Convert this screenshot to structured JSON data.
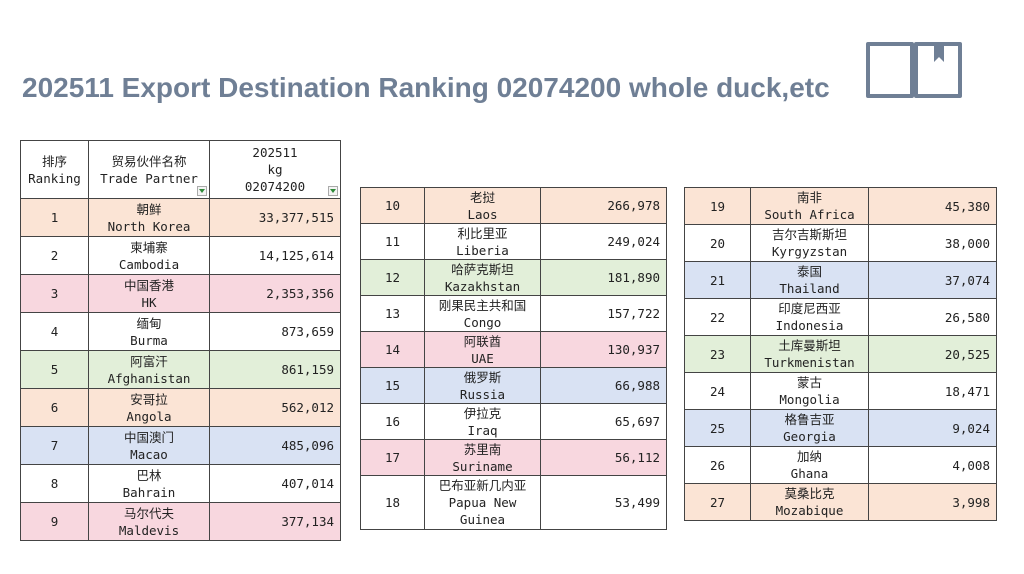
{
  "title": "202511 Export Destination Ranking 02074200 whole duck,etc",
  "icons": {
    "corner": "book-icon"
  },
  "header": {
    "rank_cn": "排序",
    "rank_en": "Ranking",
    "partner_cn": "贸易伙伴名称",
    "partner_en": "Trade Partner",
    "period": "202511",
    "unit": "kg",
    "code": "02074200"
  },
  "colors": {
    "peach": "#fbe4d5",
    "pink": "#f8d7df",
    "green": "#e2efd9",
    "blue": "#d9e2f3",
    "title": "#6f7f95"
  },
  "tables": [
    {
      "rows": [
        {
          "rank": "1",
          "cn": "朝鲜",
          "en": "North Korea",
          "value": "33,377,515",
          "color": "peach"
        },
        {
          "rank": "2",
          "cn": "柬埔寨",
          "en": "Cambodia",
          "value": "14,125,614",
          "color": "white"
        },
        {
          "rank": "3",
          "cn": "中国香港",
          "en": "HK",
          "value": "2,353,356",
          "color": "pink"
        },
        {
          "rank": "4",
          "cn": "缅甸",
          "en": "Burma",
          "value": "873,659",
          "color": "white"
        },
        {
          "rank": "5",
          "cn": "阿富汗",
          "en": "Afghanistan",
          "value": "861,159",
          "color": "green"
        },
        {
          "rank": "6",
          "cn": "安哥拉",
          "en": "Angola",
          "value": "562,012",
          "color": "peach"
        },
        {
          "rank": "7",
          "cn": "中国澳门",
          "en": "Macao",
          "value": "485,096",
          "color": "blue"
        },
        {
          "rank": "8",
          "cn": "巴林",
          "en": "Bahrain",
          "value": "407,014",
          "color": "white"
        },
        {
          "rank": "9",
          "cn": "马尔代夫",
          "en": "Maldevis",
          "value": "377,134",
          "color": "pink"
        }
      ]
    },
    {
      "rows": [
        {
          "rank": "10",
          "cn": "老挝",
          "en": "Laos",
          "value": "266,978",
          "color": "peach"
        },
        {
          "rank": "11",
          "cn": "利比里亚",
          "en": "Liberia",
          "value": "249,024",
          "color": "white"
        },
        {
          "rank": "12",
          "cn": "哈萨克斯坦",
          "en": "Kazakhstan",
          "value": "181,890",
          "color": "green"
        },
        {
          "rank": "13",
          "cn": "刚果民主共和国",
          "en": "Congo",
          "value": "157,722",
          "color": "white"
        },
        {
          "rank": "14",
          "cn": "阿联酋",
          "en": "UAE",
          "value": "130,937",
          "color": "pink"
        },
        {
          "rank": "15",
          "cn": "俄罗斯",
          "en": "Russia",
          "value": "66,988",
          "color": "blue"
        },
        {
          "rank": "16",
          "cn": "伊拉克",
          "en": "Iraq",
          "value": "65,697",
          "color": "white"
        },
        {
          "rank": "17",
          "cn": "苏里南",
          "en": "Suriname",
          "value": "56,112",
          "color": "pink"
        },
        {
          "rank": "18",
          "cn": "巴布亚新几内亚",
          "en": "Papua New Guinea",
          "value": "53,499",
          "color": "white"
        }
      ]
    },
    {
      "rows": [
        {
          "rank": "19",
          "cn": "南非",
          "en": "South Africa",
          "value": "45,380",
          "color": "peach"
        },
        {
          "rank": "20",
          "cn": "吉尔吉斯斯坦",
          "en": "Kyrgyzstan",
          "value": "38,000",
          "color": "white"
        },
        {
          "rank": "21",
          "cn": "泰国",
          "en": "Thailand",
          "value": "37,074",
          "color": "blue"
        },
        {
          "rank": "22",
          "cn": "印度尼西亚",
          "en": "Indonesia",
          "value": "26,580",
          "color": "white"
        },
        {
          "rank": "23",
          "cn": "土库曼斯坦",
          "en": "Turkmenistan",
          "value": "20,525",
          "color": "green"
        },
        {
          "rank": "24",
          "cn": "蒙古",
          "en": "Mongolia",
          "value": "18,471",
          "color": "white"
        },
        {
          "rank": "25",
          "cn": "格鲁吉亚",
          "en": "Georgia",
          "value": "9,024",
          "color": "blue"
        },
        {
          "rank": "26",
          "cn": "加纳",
          "en": "Ghana",
          "value": "4,008",
          "color": "white"
        },
        {
          "rank": "27",
          "cn": "莫桑比克",
          "en": "Mozabique",
          "value": "3,998",
          "color": "peach"
        }
      ]
    }
  ]
}
